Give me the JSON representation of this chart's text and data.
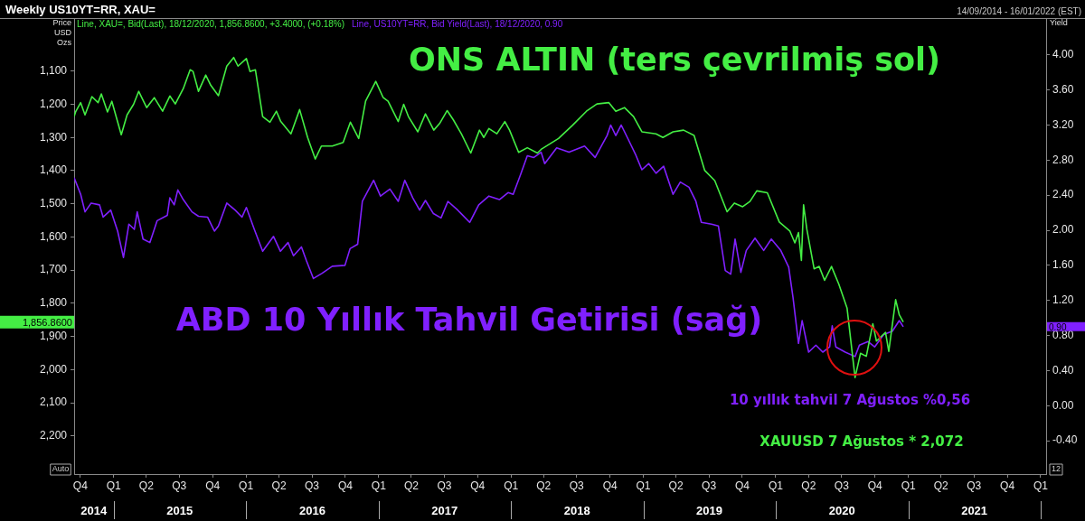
{
  "chart_data": {
    "type": "line",
    "title": "Weekly US10YT=RR, XAU=",
    "ylabel": "Price USD Ozs",
    "y2label": "Yield",
    "legend": "top left",
    "annotations": [
      "14/09/2014 - 16/01/2022 (EST)",
      "ONS ALTIN (ters çevrilmiş sol)",
      "ABD 10 Yıllık Tahvil Getirisi (sağ)",
      "10 yıllık tahvil 7 Ağustos %0,56",
      "XAUUSD 7 Ağustos * 2,072",
      "Auto",
      "12",
      "1,856.8600",
      "0.90"
    ],
    "xlim": [
      "2014-09-14",
      "2022-01-16"
    ],
    "xticks": [
      {
        "value": "2014-10-01",
        "label": "Q4"
      },
      {
        "value": "2015-01-01",
        "label": "Q1"
      },
      {
        "value": "2015-04-01",
        "label": "Q2"
      },
      {
        "value": "2015-07-01",
        "label": "Q3"
      },
      {
        "value": "2015-10-01",
        "label": "Q4"
      },
      {
        "value": "2016-01-01",
        "label": "Q1"
      },
      {
        "value": "2016-04-01",
        "label": "Q2"
      },
      {
        "value": "2016-07-01",
        "label": "Q3"
      },
      {
        "value": "2016-10-01",
        "label": "Q4"
      },
      {
        "value": "2017-01-01",
        "label": "Q1"
      },
      {
        "value": "2017-04-01",
        "label": "Q2"
      },
      {
        "value": "2017-07-01",
        "label": "Q3"
      },
      {
        "value": "2017-10-01",
        "label": "Q4"
      },
      {
        "value": "2018-01-01",
        "label": "Q1"
      },
      {
        "value": "2018-04-01",
        "label": "Q2"
      },
      {
        "value": "2018-07-01",
        "label": "Q3"
      },
      {
        "value": "2018-10-01",
        "label": "Q4"
      },
      {
        "value": "2019-01-01",
        "label": "Q1"
      },
      {
        "value": "2019-04-01",
        "label": "Q2"
      },
      {
        "value": "2019-07-01",
        "label": "Q3"
      },
      {
        "value": "2019-10-01",
        "label": "Q4"
      },
      {
        "value": "2020-01-01",
        "label": "Q1"
      },
      {
        "value": "2020-04-01",
        "label": "Q2"
      },
      {
        "value": "2020-07-01",
        "label": "Q3"
      },
      {
        "value": "2020-10-01",
        "label": "Q4"
      },
      {
        "value": "2021-01-01",
        "label": "Q1"
      },
      {
        "value": "2021-04-01",
        "label": "Q2"
      },
      {
        "value": "2021-07-01",
        "label": "Q3"
      },
      {
        "value": "2021-10-01",
        "label": "Q4"
      },
      {
        "value": "2022-01-01",
        "label": "Q1"
      }
    ],
    "x2lim": [
      "2014-09-14",
      "2022-01-16"
    ],
    "x2ticks": [
      {
        "value": "2014-11-07",
        "label": "2014"
      },
      {
        "value": "2015-01-01",
        "label": null
      },
      {
        "value": "2015-07-02",
        "label": "2015"
      },
      {
        "value": "2016-01-01",
        "label": null
      },
      {
        "value": "2016-07-02",
        "label": "2016"
      },
      {
        "value": "2017-01-01",
        "label": null
      },
      {
        "value": "2017-07-02",
        "label": "2017"
      },
      {
        "value": "2018-01-01",
        "label": null
      },
      {
        "value": "2018-07-02",
        "label": "2018"
      },
      {
        "value": "2019-01-01",
        "label": null
      },
      {
        "value": "2019-07-02",
        "label": "2019"
      },
      {
        "value": "2020-01-01",
        "label": null
      },
      {
        "value": "2020-07-02",
        "label": "2020"
      },
      {
        "value": "2021-01-01",
        "label": null
      },
      {
        "value": "2021-07-02",
        "label": "2021"
      },
      {
        "value": "2022-01-01",
        "label": null
      }
    ],
    "ylim": [
      2315,
      940
    ],
    "yticks": [
      {
        "value": 1100,
        "label": "1,100"
      },
      {
        "value": 1200,
        "label": "1,200"
      },
      {
        "value": 1300,
        "label": "1,300"
      },
      {
        "value": 1400,
        "label": "1,400"
      },
      {
        "value": 1500,
        "label": "1,500"
      },
      {
        "value": 1600,
        "label": "1,600"
      },
      {
        "value": 1700,
        "label": "1,700"
      },
      {
        "value": 1800,
        "label": "1,800"
      },
      {
        "value": 1900,
        "label": "1,900"
      },
      {
        "value": 2000,
        "label": "2,000"
      },
      {
        "value": 2100,
        "label": "2,100"
      },
      {
        "value": 2200,
        "label": "2,200"
      }
    ],
    "y2lim": [
      -0.78,
      4.42
    ],
    "y2ticks": [
      {
        "value": -0.4,
        "label": "-0.40"
      },
      {
        "value": 0,
        "label": "0.00"
      },
      {
        "value": 0.4,
        "label": "0.40"
      },
      {
        "value": 0.8,
        "label": "0.80"
      },
      {
        "value": 1.2,
        "label": "1.20"
      },
      {
        "value": 1.6,
        "label": "1.60"
      },
      {
        "value": 2,
        "label": "2.00"
      },
      {
        "value": 2.4,
        "label": "2.40"
      },
      {
        "value": 2.8,
        "label": "2.80"
      },
      {
        "value": 3.2,
        "label": "3.20"
      },
      {
        "value": 3.6,
        "label": "3.60"
      },
      {
        "value": 4,
        "label": "4.00"
      }
    ],
    "series": [
      {
        "name": "Line, XAU=, Bid(Last), 18/12/2020, 1,856.8600, +3.4000, (+0.18%)",
        "color": "#44ee44",
        "x": [
          "2014-09-14",
          "2014-09-18",
          "2014-10-02",
          "2014-10-14",
          "2014-11-02",
          "2014-11-19",
          "2014-11-28",
          "2014-12-15",
          "2014-12-27",
          "2015-01-22",
          "2015-02-07",
          "2015-02-25",
          "2015-03-11",
          "2015-04-02",
          "2015-04-23",
          "2015-05-16",
          "2015-06-05",
          "2015-06-20",
          "2015-07-12",
          "2015-07-31",
          "2015-08-08",
          "2015-08-23",
          "2015-09-12",
          "2015-09-26",
          "2015-10-17",
          "2015-11-09",
          "2015-11-28",
          "2015-12-10",
          "2016-01-02",
          "2016-01-12",
          "2016-01-27",
          "2016-02-16",
          "2016-03-07",
          "2016-03-25",
          "2016-04-06",
          "2016-05-04",
          "2016-05-28",
          "2016-06-19",
          "2016-07-10",
          "2016-07-27",
          "2016-08-26",
          "2016-09-25",
          "2016-10-15",
          "2016-11-07",
          "2016-11-26",
          "2016-12-24",
          "2017-01-13",
          "2017-01-27",
          "2017-02-24",
          "2017-03-11",
          "2017-03-24",
          "2017-04-19",
          "2017-05-10",
          "2017-06-02",
          "2017-06-18",
          "2017-07-09",
          "2017-07-26",
          "2017-08-17",
          "2017-09-12",
          "2017-10-06",
          "2017-10-18",
          "2017-11-01",
          "2017-11-23",
          "2017-12-15",
          "2017-12-28",
          "2018-01-22",
          "2018-02-15",
          "2018-03-15",
          "2018-03-25",
          "2018-05-12",
          "2018-06-20",
          "2018-07-28",
          "2018-08-26",
          "2018-09-28",
          "2018-10-17",
          "2018-11-10",
          "2018-12-05",
          "2018-12-28",
          "2019-02-05",
          "2019-02-24",
          "2019-03-24",
          "2019-04-22",
          "2019-05-21",
          "2019-06-19",
          "2019-07-17",
          "2019-08-20",
          "2019-09-09",
          "2019-10-02",
          "2019-10-22",
          "2019-11-10",
          "2019-12-09",
          "2020-01-11",
          "2020-02-09",
          "2020-02-23",
          "2020-03-04",
          "2020-03-12",
          "2020-03-18",
          "2020-03-27",
          "2020-04-16",
          "2020-04-30",
          "2020-05-15",
          "2020-06-03",
          "2020-06-23",
          "2020-07-16",
          "2020-08-07",
          "2020-08-22",
          "2020-09-07",
          "2020-09-25",
          "2020-10-05",
          "2020-10-30",
          "2020-11-08",
          "2020-11-27",
          "2020-12-07",
          "2020-12-18"
        ],
        "values": [
          1237,
          1223,
          1195,
          1232,
          1177,
          1195,
          1169,
          1223,
          1191,
          1292,
          1232,
          1200,
          1161,
          1210,
          1180,
          1221,
          1175,
          1199,
          1153,
          1096,
          1101,
          1161,
          1112,
          1143,
          1174,
          1085,
          1059,
          1085,
          1062,
          1101,
          1096,
          1237,
          1254,
          1221,
          1252,
          1289,
          1216,
          1300,
          1365,
          1326,
          1326,
          1315,
          1254,
          1303,
          1190,
          1131,
          1179,
          1191,
          1252,
          1200,
          1237,
          1283,
          1229,
          1278,
          1258,
          1219,
          1247,
          1289,
          1347,
          1278,
          1300,
          1273,
          1289,
          1252,
          1278,
          1345,
          1331,
          1347,
          1336,
          1303,
          1263,
          1221,
          1199,
          1195,
          1221,
          1210,
          1237,
          1283,
          1289,
          1300,
          1283,
          1278,
          1294,
          1399,
          1430,
          1524,
          1498,
          1509,
          1493,
          1461,
          1467,
          1555,
          1582,
          1618,
          1587,
          1671,
          1503,
          1577,
          1696,
          1689,
          1731,
          1689,
          1742,
          1815,
          2024,
          1951,
          1960,
          1862,
          1914,
          1888,
          1945,
          1789,
          1835,
          1856.86
        ]
      },
      {
        "name": "Line, US10YT=RR, Bid Yield(Last), 18/12/2020, 0.90",
        "color": "#8020ff",
        "axis": "y2",
        "x": [
          "2014-09-14",
          "2014-10-02",
          "2014-10-14",
          "2014-10-31",
          "2014-11-23",
          "2014-12-03",
          "2014-12-24",
          "2015-01-12",
          "2015-01-28",
          "2015-02-12",
          "2015-02-27",
          "2015-03-07",
          "2015-03-23",
          "2015-04-11",
          "2015-05-01",
          "2015-05-29",
          "2015-06-05",
          "2015-06-17",
          "2015-06-27",
          "2015-07-12",
          "2015-08-05",
          "2015-08-23",
          "2015-09-17",
          "2015-10-06",
          "2015-10-17",
          "2015-11-09",
          "2015-12-02",
          "2015-12-21",
          "2016-01-02",
          "2016-01-24",
          "2016-02-16",
          "2016-03-17",
          "2016-04-05",
          "2016-04-26",
          "2016-05-11",
          "2016-06-02",
          "2016-06-16",
          "2016-07-05",
          "2016-07-29",
          "2016-08-26",
          "2016-09-30",
          "2016-10-14",
          "2016-11-04",
          "2016-11-17",
          "2016-12-18",
          "2017-01-06",
          "2017-02-01",
          "2017-02-24",
          "2017-03-14",
          "2017-04-05",
          "2017-04-24",
          "2017-05-10",
          "2017-06-01",
          "2017-06-22",
          "2017-07-11",
          "2017-08-07",
          "2017-09-09",
          "2017-10-04",
          "2017-11-01",
          "2017-11-30",
          "2017-12-24",
          "2018-01-07",
          "2018-01-27",
          "2018-02-15",
          "2018-03-05",
          "2018-03-25",
          "2018-04-04",
          "2018-05-07",
          "2018-06-10",
          "2018-07-23",
          "2018-08-21",
          "2018-09-23",
          "2018-10-03",
          "2018-10-17",
          "2018-11-01",
          "2018-11-20",
          "2018-12-10",
          "2018-12-28",
          "2019-01-16",
          "2019-02-05",
          "2019-02-26",
          "2019-03-24",
          "2019-04-13",
          "2019-05-07",
          "2019-05-26",
          "2019-06-10",
          "2019-07-08",
          "2019-07-27",
          "2019-08-15",
          "2019-08-30",
          "2019-09-11",
          "2019-09-27",
          "2019-10-12",
          "2019-11-05",
          "2019-11-29",
          "2019-12-20",
          "2020-01-15",
          "2020-02-06",
          "2020-02-18",
          "2020-03-04",
          "2020-03-14",
          "2020-04-01",
          "2020-04-21",
          "2020-05-10",
          "2020-05-29",
          "2020-06-05",
          "2020-06-15",
          "2020-07-11",
          "2020-08-07",
          "2020-08-19",
          "2020-09-12",
          "2020-09-30",
          "2020-10-25",
          "2020-11-18",
          "2020-12-07",
          "2020-12-18"
        ],
        "values": [
          2.6,
          2.41,
          2.21,
          2.31,
          2.29,
          2.15,
          2.23,
          1.99,
          1.69,
          2.07,
          2.01,
          2.21,
          1.9,
          1.86,
          2.11,
          2.17,
          2.37,
          2.29,
          2.46,
          2.35,
          2.21,
          2.16,
          2.15,
          1.99,
          2.05,
          2.31,
          2.23,
          2.15,
          2.26,
          2.01,
          1.76,
          1.93,
          1.76,
          1.86,
          1.71,
          1.81,
          1.65,
          1.45,
          1.51,
          1.59,
          1.6,
          1.79,
          1.84,
          2.33,
          2.57,
          2.39,
          2.47,
          2.33,
          2.57,
          2.37,
          2.23,
          2.34,
          2.19,
          2.14,
          2.33,
          2.23,
          2.09,
          2.29,
          2.39,
          2.35,
          2.43,
          2.41,
          2.63,
          2.85,
          2.83,
          2.89,
          2.76,
          2.94,
          2.89,
          2.96,
          2.83,
          3.08,
          3.2,
          3.08,
          3.2,
          3.04,
          2.87,
          2.69,
          2.76,
          2.65,
          2.73,
          2.41,
          2.55,
          2.49,
          2.33,
          2.09,
          2.07,
          2.05,
          1.54,
          1.5,
          1.9,
          1.52,
          1.77,
          1.91,
          1.77,
          1.9,
          1.77,
          1.58,
          1.23,
          0.71,
          0.97,
          0.61,
          0.69,
          0.61,
          0.67,
          0.91,
          0.67,
          0.61,
          0.56,
          0.69,
          0.73,
          0.67,
          0.81,
          0.85,
          0.97,
          0.9
        ]
      }
    ]
  }
}
